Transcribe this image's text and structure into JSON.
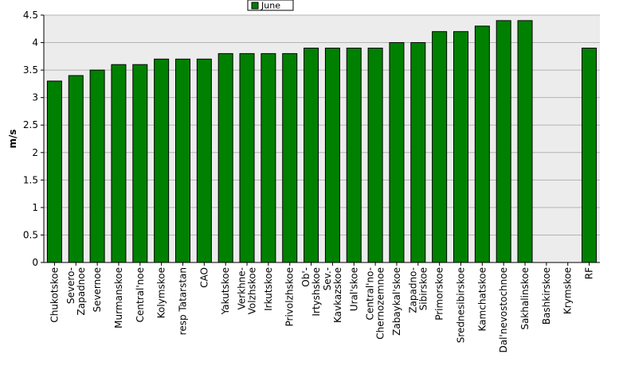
{
  "chart_data": {
    "type": "bar",
    "ylabel": "m/s",
    "ylim": [
      0,
      4.5
    ],
    "yticks": [
      "0",
      "0.5",
      "1",
      "1.5",
      "2",
      "2.5",
      "3",
      "3.5",
      "4",
      "4.5"
    ],
    "grid": true,
    "legend_position": "top-center",
    "categories": [
      "Chukotskoe",
      "Severo-Zapadnoe",
      "Severnoe",
      "Murmanskoe",
      "Central'noe",
      "Kolymskoe",
      "resp Tatarstan",
      "CAO",
      "Yakutskoe",
      "Verkhne-Volzhskoe",
      "Irkutskoe",
      "Privolzhskoe",
      "Ob'-Irtyshskoe",
      "Sev.-Kavkazskoe",
      "Ural'skoe",
      "Central'no-Chernozemnoe",
      "Zabaykal'skoe",
      "Zapadno-Sibirskoe",
      "Primorskoe",
      "Srednesibirskoe",
      "Kamchatskoe",
      "Dal'nevostochnoe",
      "Sakhalinskoe",
      "Bashkirskoe",
      "Krymskoe",
      "RF"
    ],
    "category_label_lines": [
      [
        "Chukotskoe"
      ],
      [
        "Severo-",
        "Zapadnoe"
      ],
      [
        "Severnoe"
      ],
      [
        "Murmanskoe"
      ],
      [
        "Central'noe"
      ],
      [
        "Kolymskoe"
      ],
      [
        "resp Tatarstan"
      ],
      [
        "CAO"
      ],
      [
        "Yakutskoe"
      ],
      [
        "Verkhne-",
        "Volzhskoe"
      ],
      [
        "Irkutskoe"
      ],
      [
        "Privolzhskoe"
      ],
      [
        "Ob'-",
        "Irtyshskoe"
      ],
      [
        "Sev.-",
        "Kavkazskoe"
      ],
      [
        "Ural'skoe"
      ],
      [
        "Central'no-",
        "Chernozemnoe"
      ],
      [
        "Zabaykal'skoe"
      ],
      [
        "Zapadno-",
        "Sibirskoe"
      ],
      [
        "Primorskoe"
      ],
      [
        "Srednesibirskoe"
      ],
      [
        "Kamchatskoe"
      ],
      [
        "Dal'nevostochnoe"
      ],
      [
        "Sakhalinskoe"
      ],
      [
        "Bashkirskoe"
      ],
      [
        "Krymskoe"
      ],
      [
        "RF"
      ]
    ],
    "series": [
      {
        "name": "June",
        "color": "#008000",
        "values": [
          3.3,
          3.4,
          3.5,
          3.6,
          3.6,
          3.7,
          3.7,
          3.7,
          3.8,
          3.8,
          3.8,
          3.8,
          3.9,
          3.9,
          3.9,
          3.9,
          4.0,
          4.0,
          4.2,
          4.2,
          4.3,
          4.4,
          4.4,
          null,
          null,
          3.9
        ]
      }
    ]
  },
  "colors": {
    "plot_background": "#ececec",
    "grid": "#b4b4b4",
    "bar_fill": "#008000",
    "bar_stroke": "#000000"
  }
}
